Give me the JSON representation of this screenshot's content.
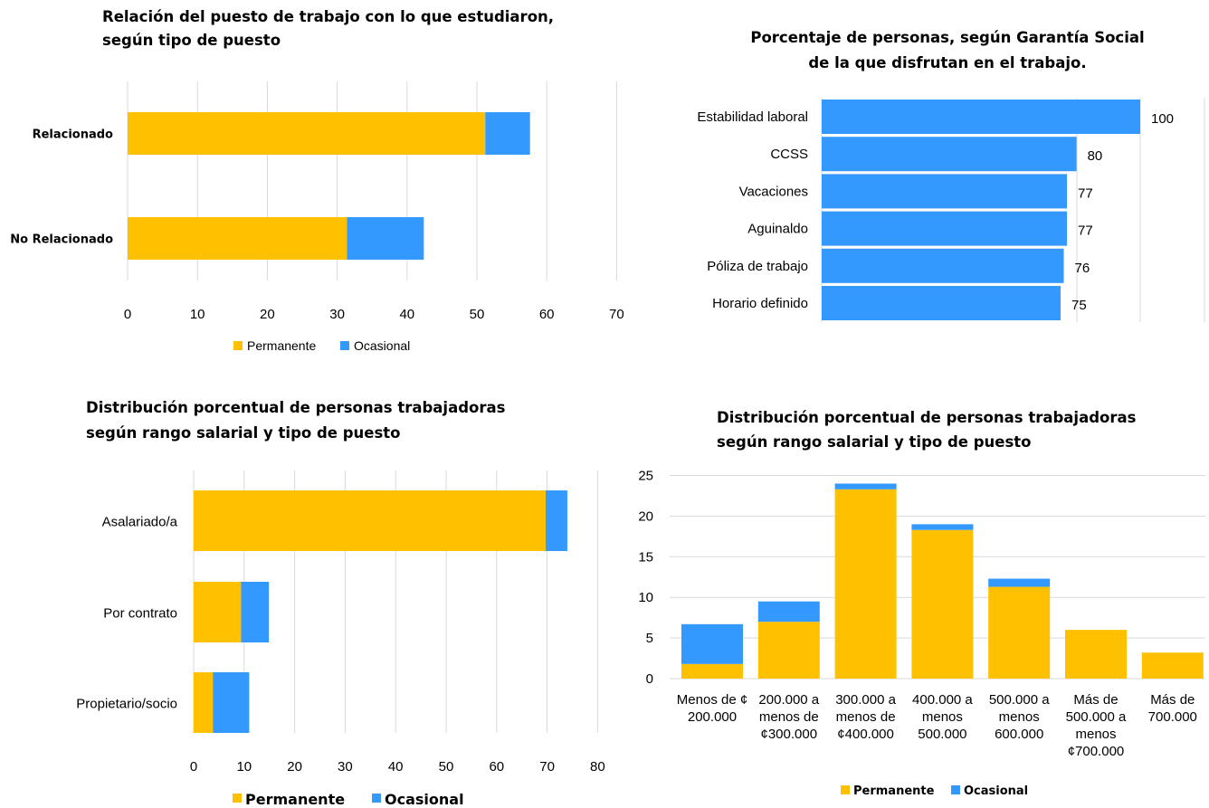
{
  "colors": {
    "permanente": "#FFC000",
    "ocasional": "#3399FF"
  },
  "chart_data": [
    {
      "type": "bar",
      "orientation": "horizontal",
      "stacked": true,
      "title_lines": [
        "Relación del puesto de trabajo con lo que estudiaron,",
        "según tipo de puesto"
      ],
      "categories": [
        "Relacionado",
        "No Relacionado"
      ],
      "series": [
        {
          "name": "Permanente",
          "values": [
            51.2,
            31.4
          ]
        },
        {
          "name": "Ocasional",
          "values": [
            6.4,
            11.0
          ]
        }
      ],
      "xlim": [
        0,
        70
      ],
      "xticks": [
        "0",
        "10",
        "20",
        "30",
        "40",
        "50",
        "60",
        "70"
      ],
      "grid": true,
      "legend": "bottom"
    },
    {
      "type": "bar",
      "orientation": "horizontal",
      "title_lines": [
        "Porcentaje de personas, según Garantía Social",
        "de la que disfrutan en el trabajo."
      ],
      "categories": [
        "Estabilidad laboral",
        "CCSS",
        "Vacaciones",
        "Aguinaldo",
        "Póliza de trabajo",
        "Horario definido"
      ],
      "values": [
        100,
        80,
        77,
        77,
        76,
        75
      ],
      "value_labels": [
        "100",
        "80",
        "77",
        "77",
        "76",
        "75"
      ],
      "xlim": [
        0,
        120
      ],
      "grid": true,
      "legend": "none"
    },
    {
      "type": "bar",
      "orientation": "horizontal",
      "stacked": true,
      "title_lines": [
        "Distribución porcentual de personas trabajadoras",
        "según rango salarial y tipo de puesto"
      ],
      "categories": [
        "Asalariado/a",
        "Por contrato",
        "Propietario/socio"
      ],
      "series": [
        {
          "name": "Permanente",
          "values": [
            69.7,
            9.4,
            3.8
          ]
        },
        {
          "name": "Ocasional",
          "values": [
            4.3,
            5.5,
            7.2
          ]
        }
      ],
      "xlim": [
        0,
        80
      ],
      "xticks": [
        "0",
        "10",
        "20",
        "30",
        "40",
        "50",
        "60",
        "70",
        "80"
      ],
      "grid": true,
      "legend": "bottom"
    },
    {
      "type": "bar",
      "orientation": "vertical",
      "stacked": true,
      "title_lines": [
        "Distribución porcentual de personas trabajadoras",
        "según rango salarial y tipo de puesto"
      ],
      "categories": [
        [
          "Menos de ¢",
          "200.000"
        ],
        [
          "200.000 a",
          "menos de",
          "¢300.000"
        ],
        [
          "300.000 a",
          "menos de",
          "¢400.000"
        ],
        [
          "400.000 a",
          "menos",
          "500.000"
        ],
        [
          "500.000 a",
          "menos",
          "600.000"
        ],
        [
          "Más de",
          "500.000 a",
          "menos",
          "¢700.000"
        ],
        [
          "Más de",
          "700.000"
        ]
      ],
      "series": [
        {
          "name": "Permanente",
          "values": [
            1.8,
            7.0,
            23.3,
            18.3,
            11.3,
            6.0,
            3.2
          ]
        },
        {
          "name": "Ocasional",
          "values": [
            4.9,
            2.5,
            0.7,
            0.7,
            1.0,
            0,
            0
          ]
        }
      ],
      "ylim": [
        0,
        25
      ],
      "yticks": [
        "0",
        "5",
        "10",
        "15",
        "20",
        "25"
      ],
      "grid": true,
      "legend": "bottom"
    }
  ]
}
